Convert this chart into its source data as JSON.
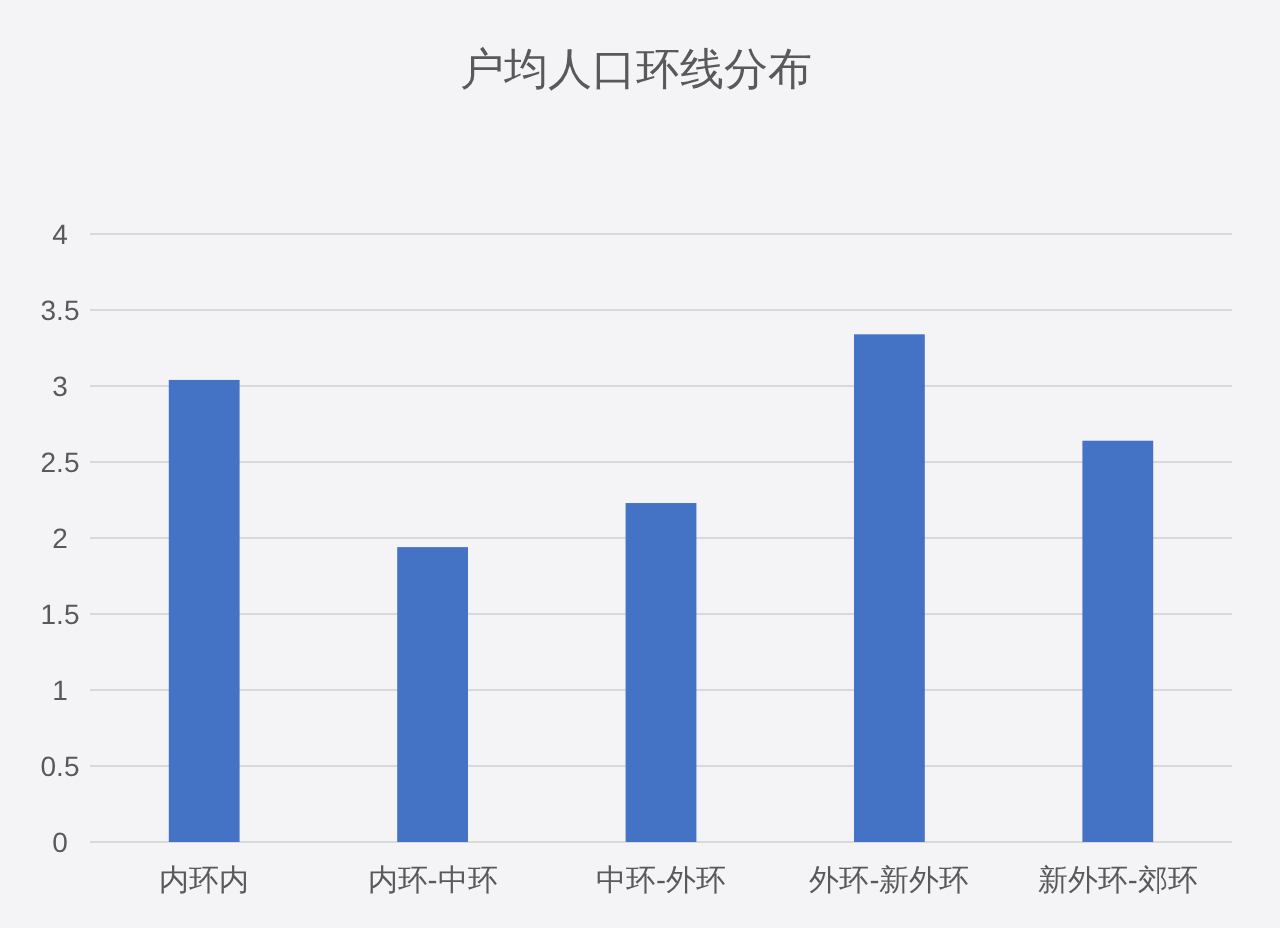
{
  "chart_data": {
    "type": "bar",
    "title": "户均人口环线分布",
    "categories": [
      "内环内",
      "内环-中环",
      "中环-外环",
      "外环-新外环",
      "新外环-郊环"
    ],
    "values": [
      3.04,
      1.94,
      2.23,
      3.34,
      2.64
    ],
    "color": "#4472c4",
    "ylim": [
      0,
      4
    ],
    "yticks": [
      0,
      0.5,
      1,
      1.5,
      2,
      2.5,
      3,
      3.5,
      4
    ],
    "grid": "y"
  }
}
